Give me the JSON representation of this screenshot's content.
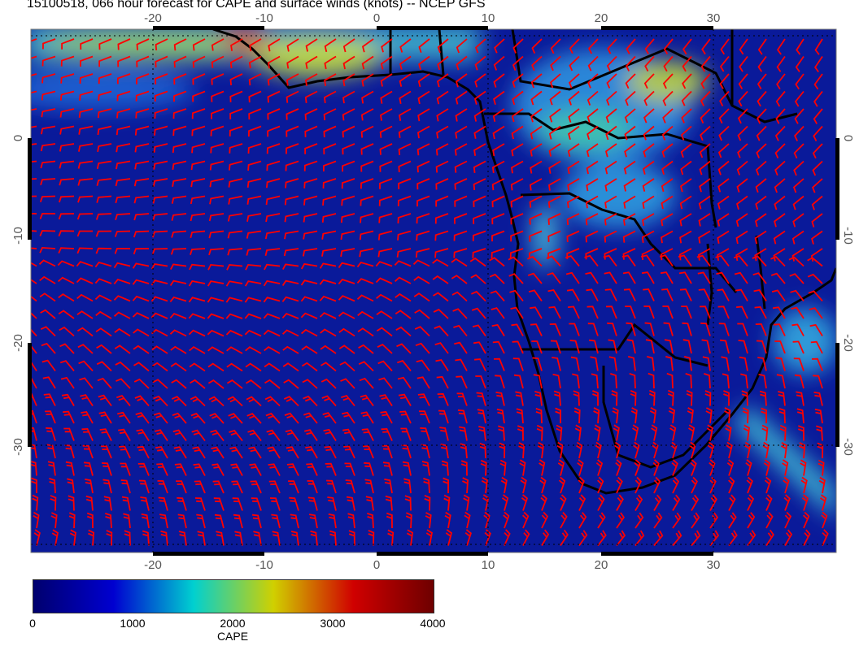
{
  "title": "15100518, 066 hour forecast for CAPE and surface winds (knots) -- NCEP GFS",
  "map": {
    "lon_range": [
      -31,
      41
    ],
    "lat_range": [
      -40,
      10
    ],
    "lon_ticks": [
      "-20",
      "-10",
      "0",
      "10",
      "20",
      "30"
    ],
    "lat_ticks": [
      "0",
      "-10",
      "-20",
      "-30"
    ],
    "field": "CAPE",
    "wind_barb_color": "#ff0000",
    "coastline_color": "#000000"
  },
  "colorbar": {
    "label": "CAPE",
    "ticks": [
      "0",
      "1000",
      "2000",
      "3000",
      "4000"
    ],
    "range": [
      0,
      4000
    ],
    "colors": [
      "#00006e",
      "#0000d0",
      "#00d0d0",
      "#d0d000",
      "#d00000",
      "#6e0000"
    ]
  }
}
